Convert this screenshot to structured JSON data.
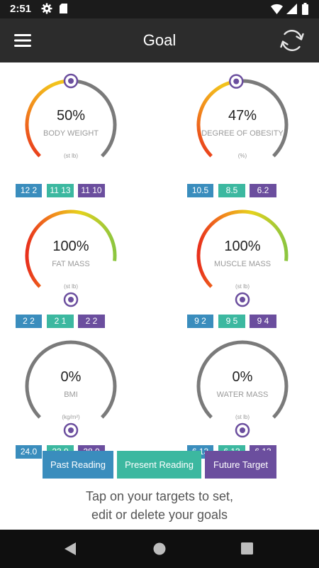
{
  "status": {
    "time": "2:51",
    "icons": [
      "gear-icon",
      "sd-card-icon",
      "wifi-icon",
      "signal-icon",
      "battery-icon"
    ]
  },
  "appbar": {
    "title": "Goal",
    "menu_icon": "hamburger-menu-icon",
    "sync_icon": "sync-icon"
  },
  "gauges": [
    {
      "name": "body-weight",
      "percent_text": "50%",
      "label": "BODY WEIGHT",
      "unit": "(st lb)",
      "progress": 0.5,
      "style": "fade",
      "marker": "end",
      "readings": {
        "past": "12 2",
        "present": "11 13",
        "future": "11 10"
      }
    },
    {
      "name": "degree-of-obesity",
      "percent_text": "47%",
      "label": "DEGREE OF OBESITY",
      "unit": "(%)",
      "progress": 0.47,
      "style": "fade",
      "marker": "end",
      "readings": {
        "past": "10.5",
        "present": "8.5",
        "future": "6.2"
      }
    },
    {
      "name": "fat-mass",
      "percent_text": "100%",
      "label": "FAT MASS",
      "unit": "(st lb)",
      "progress": 1.0,
      "style": "full",
      "marker": "start",
      "readings": {
        "past": "2 2",
        "present": "2 1",
        "future": "2 2"
      }
    },
    {
      "name": "muscle-mass",
      "percent_text": "100%",
      "label": "MUSCLE MASS",
      "unit": "(st lb)",
      "progress": 1.0,
      "style": "full",
      "marker": "start",
      "readings": {
        "past": "9 2",
        "present": "9 5",
        "future": "9 4"
      }
    },
    {
      "name": "bmi",
      "percent_text": "0%",
      "label": "BMI",
      "unit": "(kg/m²)",
      "progress": 0.0,
      "style": "none",
      "marker": "start",
      "readings": {
        "past": "24.0",
        "present": "23.9",
        "future": "28.0"
      }
    },
    {
      "name": "water-mass",
      "percent_text": "0%",
      "label": "WATER MASS",
      "unit": "(st lb)",
      "progress": 0.0,
      "style": "none",
      "marker": "start",
      "readings": {
        "past": "6 13",
        "present": "6 13",
        "future": "6 13"
      }
    }
  ],
  "legend": {
    "past": "Past Reading",
    "present": "Present Reading",
    "future": "Future Target"
  },
  "hint": {
    "line1": "Tap on your targets to set,",
    "line2": "edit or delete your goals"
  },
  "colors": {
    "past": "#3a8dbd",
    "present": "#3cb8a0",
    "future": "#6b4e9e",
    "track": "#7a7a7a",
    "marker": "#6b4e9e",
    "grad_start": "#e8301c",
    "grad_mid": "#f28c1c",
    "grad_end": "#8cc63f"
  },
  "navbar": {
    "icons": [
      "back-icon",
      "home-icon",
      "recents-icon"
    ]
  }
}
